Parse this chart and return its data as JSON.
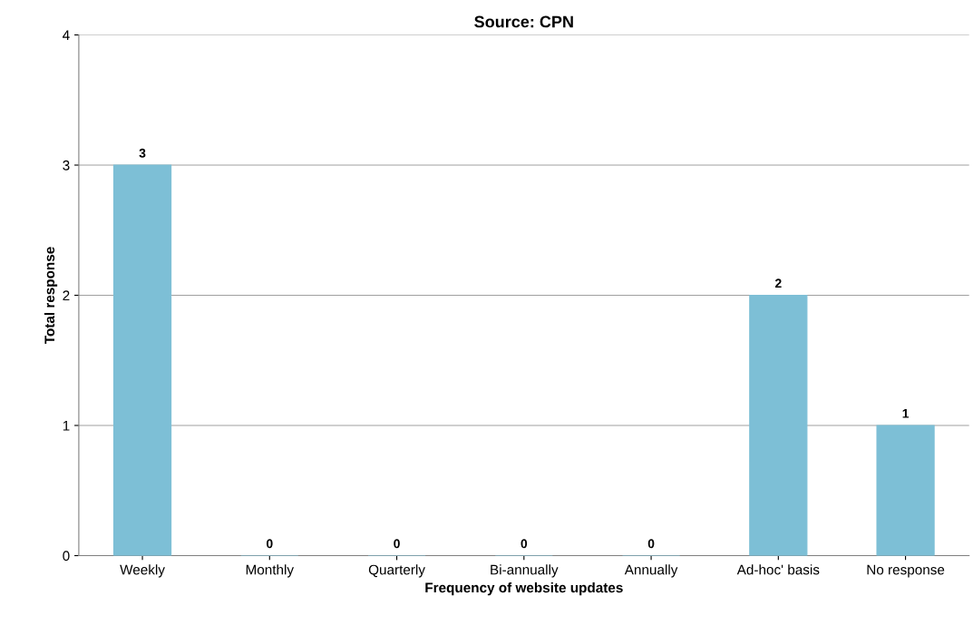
{
  "chart_data": {
    "type": "bar",
    "title": "Source: CPN",
    "xlabel": "Frequency of website updates",
    "ylabel": "Total response",
    "categories": [
      "Weekly",
      "Monthly",
      "Quarterly",
      "Bi-annually",
      "Annually",
      "Ad-hoc' basis",
      "No response"
    ],
    "values": [
      3,
      0,
      0,
      0,
      0,
      2,
      1
    ],
    "color": "#7dbfd6",
    "ylim": [
      0,
      4
    ],
    "yticks": [
      0,
      1,
      2,
      3,
      4
    ],
    "grid": "y",
    "data_labels": true
  }
}
